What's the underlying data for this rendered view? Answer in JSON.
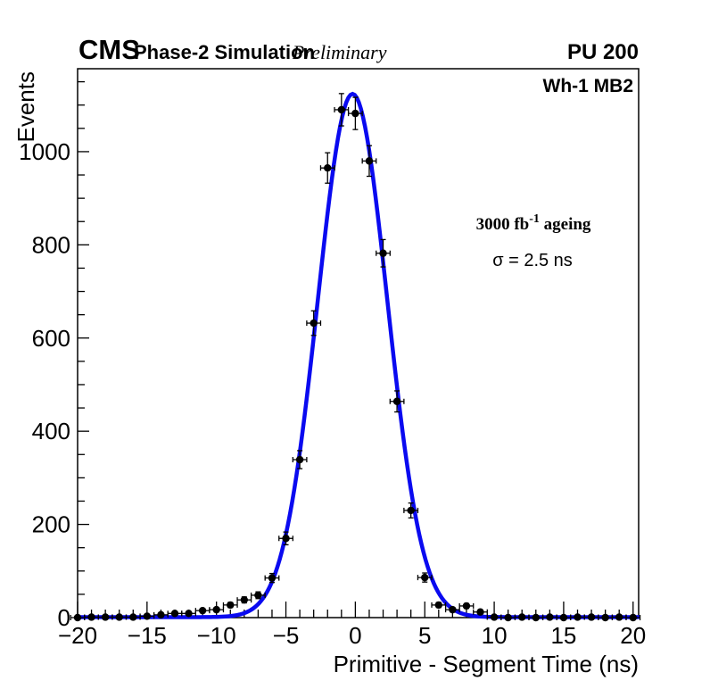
{
  "header": {
    "experiment": "CMS",
    "context": "Phase-2 Simulation",
    "qualifier": "Preliminary",
    "pileup": "PU 200"
  },
  "plot": {
    "region_label": "Wh-1 MB2",
    "annotations": {
      "ageing_prefix": "3000 fb",
      "ageing_exponent": "-1",
      "ageing_suffix": " ageing",
      "resolution": "σ = 2.5 ns"
    }
  },
  "chart_data": {
    "type": "scatter",
    "title": "",
    "xlabel": "Primitive - Segment Time (ns)",
    "ylabel": "Events",
    "xlim": [
      -20,
      20.4
    ],
    "ylim": [
      0,
      1178
    ],
    "x_major_ticks": [
      -20,
      -15,
      -10,
      -5,
      0,
      5,
      10,
      15,
      20
    ],
    "x_minor_step": 1,
    "y_major_ticks": [
      0,
      200,
      400,
      600,
      800,
      1000
    ],
    "y_minor_step": 50,
    "grid": false,
    "legend": "none",
    "series": [
      {
        "name": "primitive-segment-time-residuals",
        "marker": "filled-circle",
        "color": "#000000",
        "x_bin_half_width": 0.5,
        "points": [
          [
            -20,
            0
          ],
          [
            -19,
            1
          ],
          [
            -18,
            1
          ],
          [
            -17,
            1
          ],
          [
            -16,
            1
          ],
          [
            -15,
            3
          ],
          [
            -14,
            6
          ],
          [
            -13,
            9
          ],
          [
            -12,
            9
          ],
          [
            -11,
            15
          ],
          [
            -10,
            17
          ],
          [
            -9,
            27
          ],
          [
            -8,
            38
          ],
          [
            -7,
            48
          ],
          [
            -6,
            85
          ],
          [
            -5,
            170
          ],
          [
            -4,
            339
          ],
          [
            -3,
            632
          ],
          [
            -2,
            965
          ],
          [
            -1,
            1090
          ],
          [
            0,
            1082
          ],
          [
            1,
            980
          ],
          [
            2,
            782
          ],
          [
            3,
            464
          ],
          [
            4,
            230
          ],
          [
            5,
            86
          ],
          [
            6,
            27
          ],
          [
            7,
            17
          ],
          [
            8,
            25
          ],
          [
            9,
            12
          ],
          [
            10,
            1
          ],
          [
            11,
            0
          ],
          [
            12,
            1
          ],
          [
            13,
            0
          ],
          [
            14,
            1
          ],
          [
            15,
            0
          ],
          [
            16,
            1
          ],
          [
            17,
            1
          ],
          [
            18,
            0
          ],
          [
            19,
            1
          ],
          [
            20,
            0
          ]
        ]
      }
    ],
    "fit": {
      "name": "gaussian-fit",
      "type": "gaussian",
      "color": "#0a0af0",
      "amplitude": 1123,
      "mean": -0.2,
      "sigma": 2.5,
      "baseline": 1
    }
  }
}
